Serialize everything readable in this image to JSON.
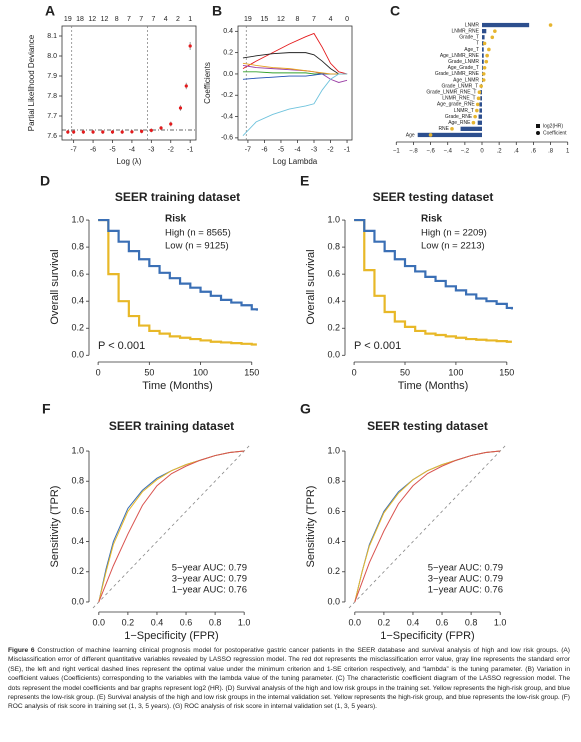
{
  "chart_data": [
    {
      "panel": "A",
      "type": "errorbar",
      "xlabel": "Log (λ)",
      "ylabel": "Partial Likelihood Deviance",
      "x": [
        -7.3,
        -7,
        -6.5,
        -6,
        -5.5,
        -5,
        -4.5,
        -4,
        -3.5,
        -3,
        -2.5,
        -2,
        -1.5,
        -1.2,
        -1
      ],
      "values": [
        7.62,
        7.62,
        7.62,
        7.62,
        7.62,
        7.62,
        7.62,
        7.621,
        7.623,
        7.628,
        7.64,
        7.66,
        7.74,
        7.85,
        8.05
      ],
      "errors": [
        0.01,
        0.01,
        0.01,
        0.01,
        0.01,
        0.01,
        0.01,
        0.01,
        0.01,
        0.01,
        0.01,
        0.012,
        0.014,
        0.016,
        0.02
      ],
      "color": "#e41a1c",
      "error_color": "#9a9a9a",
      "xlim": [
        -7.6,
        -0.7
      ],
      "ylim": [
        7.58,
        8.15
      ],
      "xticks": [
        -7,
        -6,
        -5,
        -4,
        -3,
        -2,
        -1
      ],
      "yticks": [
        7.6,
        7.7,
        7.8,
        7.9,
        {
          "value": 8,
          "label": "8.0"
        },
        8.1
      ],
      "top_ticks": [
        {
          "value": -7.3,
          "label": "19"
        },
        {
          "value": -6.67,
          "label": "18"
        },
        {
          "value": -6.04,
          "label": "12"
        },
        {
          "value": -5.41,
          "label": "12"
        },
        {
          "value": -4.78,
          "label": "8"
        },
        {
          "value": -4.15,
          "label": "7"
        },
        {
          "value": -3.52,
          "label": "7"
        },
        {
          "value": -2.89,
          "label": "7"
        },
        {
          "value": -2.26,
          "label": "4"
        },
        {
          "value": -1.63,
          "label": "2"
        },
        {
          "value": -1.0,
          "label": "1"
        }
      ],
      "vlines": [
        -7.1,
        -3.2
      ],
      "hline": 7.63
    },
    {
      "panel": "B",
      "type": "line",
      "xlabel": "Log Lambda",
      "ylabel": "Coefficients",
      "x": [
        -7.3,
        -6.5,
        -5.5,
        -4.5,
        -3.5,
        -3,
        -2.5,
        -2,
        -1.5,
        -1
      ],
      "series": [
        {
          "color": "#e41a1c",
          "values": [
            0.05,
            0.12,
            0.2,
            0.28,
            0.35,
            0.38,
            0.25,
            0.1,
            0.02,
            0
          ]
        },
        {
          "color": "#222222",
          "values": [
            0.15,
            0.17,
            0.19,
            0.2,
            0.2,
            0.18,
            0.12,
            0.05,
            0,
            0
          ]
        },
        {
          "color": "#9b3fa5",
          "values": [
            0.08,
            0.06,
            0.05,
            0.04,
            0.03,
            0.02,
            0,
            -0.05,
            -0.08,
            -0.06
          ]
        },
        {
          "color": "#33a02c",
          "values": [
            0.02,
            0.02,
            0.01,
            0.01,
            0.01,
            0,
            0,
            0,
            0,
            0
          ]
        },
        {
          "color": "#1f4fb4",
          "values": [
            -0.05,
            -0.04,
            -0.03,
            -0.02,
            -0.02,
            -0.01,
            0,
            0,
            0,
            0
          ]
        },
        {
          "color": "#e7a020",
          "values": [
            0.1,
            0.08,
            0.06,
            0.05,
            0.03,
            0.02,
            0.01,
            0,
            0,
            0
          ]
        },
        {
          "color": "#6fc3dd",
          "values": [
            -0.58,
            -0.45,
            -0.38,
            -0.33,
            -0.3,
            -0.28,
            -0.15,
            -0.05,
            0,
            0
          ]
        }
      ],
      "xlim": [
        -7.6,
        -0.7
      ],
      "ylim": [
        -0.62,
        0.45
      ],
      "xticks": [
        -7,
        -6,
        -5,
        -4,
        -3,
        -2,
        -1
      ],
      "yticks": [
        -0.6,
        -0.4,
        -0.2,
        {
          "value": 0,
          "label": "0.0"
        },
        0.2,
        0.4
      ],
      "top_ticks": [
        {
          "value": -7,
          "label": "19"
        },
        {
          "value": -6,
          "label": "15"
        },
        {
          "value": -5,
          "label": "12"
        },
        {
          "value": -4,
          "label": "8"
        },
        {
          "value": -3,
          "label": "7"
        },
        {
          "value": -2,
          "label": "4"
        },
        {
          "value": -1,
          "label": "0"
        }
      ],
      "vlines": [
        -7.1
      ]
    },
    {
      "panel": "C",
      "type": "bar",
      "orientation": "horizontal",
      "categories": [
        "LNMR",
        "LNMR_RNE",
        "Grade_T",
        "T",
        "Age_T",
        "Age_LNMR_RNE",
        "Grade_LNMR",
        "Age_Grade_T",
        "Grade_LNMR_RNE",
        "Age_LNMR",
        "Grade_LNMR_T",
        "Grade_LNMR_RNE_T",
        "LNMR_RNE_T",
        "Age_grade_RNE",
        "LNMR_T",
        "Grade_RNE",
        "Age_RNE",
        "RNE",
        "Age"
      ],
      "series": [
        {
          "name": "log2(HR)",
          "style": "bar",
          "color": "#2d4f8e",
          "values": [
            0.55,
            0.05,
            0.03,
            0.02,
            0.02,
            0.02,
            0.02,
            0.01,
            0.01,
            0.01,
            -0.01,
            -0.02,
            -0.02,
            -0.03,
            -0.03,
            -0.04,
            -0.05,
            -0.25,
            -0.75
          ]
        },
        {
          "name": "Coefficient",
          "style": "dot",
          "color": "#e6b530",
          "values": [
            0.8,
            0.15,
            0.12,
            0.03,
            0.08,
            0.06,
            0.05,
            0.03,
            0.02,
            0.02,
            -0.01,
            -0.03,
            -0.04,
            -0.05,
            -0.06,
            -0.08,
            -0.1,
            -0.35,
            -0.6
          ]
        }
      ],
      "xlim": [
        -1.05,
        1.05
      ],
      "xticks": [
        {
          "value": -1,
          "label": "−1"
        },
        {
          "value": -0.8,
          "label": "−.8"
        },
        {
          "value": -0.6,
          "label": "−.6"
        },
        {
          "value": -0.4,
          "label": "−.4"
        },
        {
          "value": -0.2,
          "label": "−.2"
        },
        0,
        {
          "value": 0.2,
          "label": ".2"
        },
        {
          "value": 0.4,
          "label": ".4"
        },
        {
          "value": 0.6,
          "label": ".6"
        },
        {
          "value": 0.8,
          "label": ".8"
        },
        1
      ]
    },
    {
      "panel": "D",
      "type": "line",
      "step": true,
      "title": "SEER training dataset",
      "xlabel": "Time (Months)",
      "ylabel": "Overall survival",
      "legend_title": "Risk",
      "annotation": "P < 0.001",
      "x": [
        0,
        10,
        20,
        30,
        40,
        50,
        60,
        70,
        80,
        90,
        100,
        110,
        120,
        130,
        140,
        150,
        155
      ],
      "series": [
        {
          "name": "High (n = 8565)",
          "color": "#e8b828",
          "values": [
            1.0,
            0.6,
            0.4,
            0.29,
            0.22,
            0.18,
            0.16,
            0.14,
            0.13,
            0.12,
            0.11,
            0.1,
            0.095,
            0.09,
            0.085,
            0.08,
            0.08
          ]
        },
        {
          "name": "Low (n = 9125)",
          "color": "#3a6fb5",
          "values": [
            1.0,
            0.92,
            0.84,
            0.77,
            0.71,
            0.66,
            0.61,
            0.57,
            0.53,
            0.5,
            0.47,
            0.44,
            0.41,
            0.39,
            0.37,
            0.34,
            0.33
          ]
        }
      ],
      "xlim": [
        -5,
        160
      ],
      "ylim": [
        -0.02,
        1.03
      ],
      "xticks": [
        0,
        50,
        100,
        150
      ],
      "yticks": [
        {
          "value": 0,
          "label": "0.0"
        },
        0.2,
        0.4,
        0.6,
        0.8,
        {
          "value": 1,
          "label": "1.0"
        }
      ]
    },
    {
      "panel": "E",
      "type": "line",
      "step": true,
      "title": "SEER testing dataset",
      "xlabel": "Time (Months)",
      "ylabel": "Overall survival",
      "legend_title": "Risk",
      "annotation": "P < 0.001",
      "x": [
        0,
        10,
        20,
        30,
        40,
        50,
        60,
        70,
        80,
        90,
        100,
        110,
        120,
        130,
        140,
        150,
        155
      ],
      "series": [
        {
          "name": "High (n = 2209)",
          "color": "#e8b828",
          "values": [
            1.0,
            0.63,
            0.44,
            0.32,
            0.25,
            0.21,
            0.18,
            0.16,
            0.15,
            0.14,
            0.13,
            0.12,
            0.115,
            0.11,
            0.105,
            0.1,
            0.1
          ]
        },
        {
          "name": "Low (n = 2213)",
          "color": "#3a6fb5",
          "values": [
            1.0,
            0.92,
            0.84,
            0.77,
            0.71,
            0.66,
            0.62,
            0.58,
            0.55,
            0.51,
            0.48,
            0.45,
            0.42,
            0.4,
            0.38,
            0.35,
            0.34
          ]
        }
      ],
      "xlim": [
        -5,
        160
      ],
      "ylim": [
        -0.02,
        1.03
      ],
      "xticks": [
        0,
        50,
        100,
        150
      ],
      "yticks": [
        {
          "value": 0,
          "label": "0.0"
        },
        0.2,
        0.4,
        0.6,
        0.8,
        {
          "value": 1,
          "label": "1.0"
        }
      ]
    },
    {
      "panel": "F",
      "type": "line",
      "roc": true,
      "title": "SEER training dataset",
      "xlabel": "1−Specificity (FPR)",
      "ylabel": "Sensitivity (TPR)",
      "x": [
        0,
        0.05,
        0.1,
        0.2,
        0.3,
        0.4,
        0.5,
        0.6,
        0.7,
        0.8,
        0.9,
        1
      ],
      "series": [
        {
          "name": "5−year AUC: 0.79",
          "color": "#3a6fb5",
          "values": [
            0,
            0.22,
            0.4,
            0.62,
            0.74,
            0.82,
            0.87,
            0.91,
            0.94,
            0.97,
            0.99,
            1
          ]
        },
        {
          "name": "3−year AUC: 0.79",
          "color": "#e8b828",
          "values": [
            0,
            0.2,
            0.38,
            0.6,
            0.73,
            0.81,
            0.87,
            0.91,
            0.94,
            0.97,
            0.99,
            1
          ]
        },
        {
          "name": "1−year AUC: 0.76",
          "color": "#d9534f",
          "values": [
            0,
            0.12,
            0.24,
            0.45,
            0.64,
            0.77,
            0.85,
            0.9,
            0.94,
            0.97,
            0.99,
            1
          ]
        }
      ],
      "reference_line": true,
      "xlim": [
        -0.04,
        1.04
      ],
      "ylim": [
        -0.04,
        1.04
      ],
      "xticks": [
        {
          "value": 0,
          "label": "0.0"
        },
        0.2,
        0.4,
        0.6,
        0.8,
        {
          "value": 1,
          "label": "1.0"
        }
      ],
      "yticks": [
        {
          "value": 0,
          "label": "0.0"
        },
        0.2,
        0.4,
        0.6,
        0.8,
        {
          "value": 1,
          "label": "1.0"
        }
      ]
    },
    {
      "panel": "G",
      "type": "line",
      "roc": true,
      "title": "SEER testing dataset",
      "xlabel": "1−Specificity (FPR)",
      "ylabel": "Sensitivity (TPR)",
      "x": [
        0,
        0.05,
        0.1,
        0.2,
        0.3,
        0.4,
        0.5,
        0.6,
        0.7,
        0.8,
        0.9,
        1
      ],
      "series": [
        {
          "name": "5−year AUC: 0.79",
          "color": "#3a6fb5",
          "values": [
            0,
            0.2,
            0.38,
            0.6,
            0.73,
            0.81,
            0.87,
            0.91,
            0.94,
            0.97,
            0.99,
            1
          ]
        },
        {
          "name": "3−year AUC: 0.79",
          "color": "#e8b828",
          "values": [
            0,
            0.2,
            0.37,
            0.59,
            0.72,
            0.81,
            0.87,
            0.91,
            0.94,
            0.97,
            0.99,
            1
          ]
        },
        {
          "name": "1−year AUC: 0.76",
          "color": "#d9534f",
          "values": [
            0,
            0.13,
            0.26,
            0.47,
            0.65,
            0.77,
            0.85,
            0.9,
            0.94,
            0.97,
            0.99,
            1
          ]
        }
      ],
      "reference_line": true,
      "xlim": [
        -0.04,
        1.04
      ],
      "ylim": [
        -0.04,
        1.04
      ],
      "xticks": [
        {
          "value": 0,
          "label": "0.0"
        },
        0.2,
        0.4,
        0.6,
        0.8,
        {
          "value": 1,
          "label": "1.0"
        }
      ],
      "yticks": [
        {
          "value": 0,
          "label": "0.0"
        },
        0.2,
        0.4,
        0.6,
        0.8,
        {
          "value": 1,
          "label": "1.0"
        }
      ]
    }
  ],
  "caption": {
    "label": "Figure 6",
    "text": "Construction of machine learning clinical prognosis model for postoperative gastric cancer patients in the SEER database and survival analysis of high and low risk groups. (A) Misclassification error of different quantitative variables revealed by LASSO regression model. The red dot represents the misclassification error value, gray line represents the standard error (SE), the left and right vertical dashed lines represent the optimal value under the minimum criterion and 1-SE criterion respectively, and “lambda” is the tuning parameter. (B) Variation in coefficient values (Coefficients) corresponding to the variables with the lambda value of the tuning parameter. (C) The characteristic coefficient diagram of the LASSO regression model. The dots represent the model coefficients and bar graphs represent log2 (HR). (D) Survival analysis of the high and low risk groups in the training set. Yellow represents the high-risk group, and blue represents the low-risk group. (E) Survival analysis of the high and low risk groups in the internal validation set. Yellow represents the high-risk group, and blue represents the low-risk group. (F) ROC analysis of risk score in training set (1, 3, 5 years). (G) ROC analysis of risk score in internal validation set (1, 3, 5 years)."
  }
}
